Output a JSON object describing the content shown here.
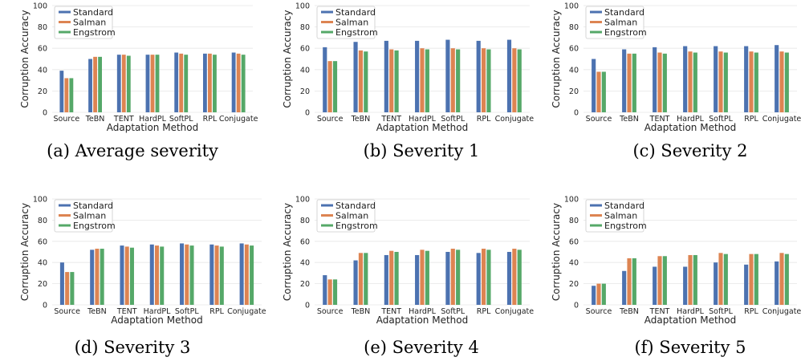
{
  "legend": [
    "Standard",
    "Salman",
    "Engstrom"
  ],
  "colors": [
    "#4c72b0",
    "#dd8452",
    "#55a868"
  ],
  "chart_data": [
    {
      "type": "bar",
      "caption": "(a) Average severity",
      "xlabel": "Adaptation Method",
      "ylabel": "Corruption Accuracy",
      "ylim": [
        0,
        100
      ],
      "yticks": [
        0,
        20,
        40,
        60,
        80,
        100
      ],
      "categories": [
        "Source",
        "TeBN",
        "TENT",
        "HardPL",
        "SoftPL",
        "RPL",
        "Conjugate"
      ],
      "series": [
        {
          "name": "Standard",
          "values": [
            39,
            50,
            54,
            54,
            56,
            55,
            56
          ]
        },
        {
          "name": "Salman",
          "values": [
            32,
            52,
            54,
            54,
            55,
            55,
            55
          ]
        },
        {
          "name": "Engstrom",
          "values": [
            32,
            52,
            53,
            54,
            54,
            54,
            54
          ]
        }
      ]
    },
    {
      "type": "bar",
      "caption": "(b) Severity 1",
      "xlabel": "Adaptation Method",
      "ylabel": "Corruption Accuracy",
      "ylim": [
        0,
        100
      ],
      "yticks": [
        0,
        20,
        40,
        60,
        80,
        100
      ],
      "categories": [
        "Source",
        "TeBN",
        "TENT",
        "HardPL",
        "SoftPL",
        "RPL",
        "Conjugate"
      ],
      "series": [
        {
          "name": "Standard",
          "values": [
            61,
            66,
            67,
            67,
            68,
            67,
            68
          ]
        },
        {
          "name": "Salman",
          "values": [
            48,
            58,
            59,
            60,
            60,
            60,
            60
          ]
        },
        {
          "name": "Engstrom",
          "values": [
            48,
            57,
            58,
            59,
            59,
            59,
            59
          ]
        }
      ]
    },
    {
      "type": "bar",
      "caption": "(c) Severity 2",
      "xlabel": "Adaptation Method",
      "ylabel": "Corruption Accuracy",
      "ylim": [
        0,
        100
      ],
      "yticks": [
        0,
        20,
        40,
        60,
        80,
        100
      ],
      "categories": [
        "Source",
        "TeBN",
        "TENT",
        "HardPL",
        "SoftPL",
        "RPL",
        "Conjugate"
      ],
      "series": [
        {
          "name": "Standard",
          "values": [
            50,
            59,
            61,
            62,
            62,
            62,
            63
          ]
        },
        {
          "name": "Salman",
          "values": [
            38,
            55,
            56,
            57,
            57,
            57,
            57
          ]
        },
        {
          "name": "Engstrom",
          "values": [
            38,
            55,
            55,
            56,
            56,
            56,
            56
          ]
        }
      ]
    },
    {
      "type": "bar",
      "caption": "(d) Severity 3",
      "xlabel": "Adaptation Method",
      "ylabel": "Corruption Accuracy",
      "ylim": [
        0,
        100
      ],
      "yticks": [
        0,
        20,
        40,
        60,
        80,
        100
      ],
      "categories": [
        "Source",
        "TeBN",
        "TENT",
        "HardPL",
        "SoftPL",
        "RPL",
        "Conjugate"
      ],
      "series": [
        {
          "name": "Standard",
          "values": [
            40,
            52,
            56,
            57,
            58,
            57,
            58
          ]
        },
        {
          "name": "Salman",
          "values": [
            31,
            53,
            55,
            56,
            57,
            56,
            57
          ]
        },
        {
          "name": "Engstrom",
          "values": [
            31,
            53,
            54,
            55,
            56,
            55,
            56
          ]
        }
      ]
    },
    {
      "type": "bar",
      "caption": "(e) Severity 4",
      "xlabel": "Adaptation Method",
      "ylabel": "Corruption Accuracy",
      "ylim": [
        0,
        100
      ],
      "yticks": [
        0,
        20,
        40,
        60,
        80,
        100
      ],
      "categories": [
        "Source",
        "TeBN",
        "TENT",
        "HardPL",
        "SoftPL",
        "RPL",
        "Conjugate"
      ],
      "series": [
        {
          "name": "Standard",
          "values": [
            28,
            42,
            47,
            47,
            50,
            49,
            50
          ]
        },
        {
          "name": "Salman",
          "values": [
            24,
            49,
            51,
            52,
            53,
            53,
            53
          ]
        },
        {
          "name": "Engstrom",
          "values": [
            24,
            49,
            50,
            51,
            52,
            52,
            52
          ]
        }
      ]
    },
    {
      "type": "bar",
      "caption": "(f) Severity 5",
      "xlabel": "Adaptation Method",
      "ylabel": "Corruption Accuracy",
      "ylim": [
        0,
        100
      ],
      "yticks": [
        0,
        20,
        40,
        60,
        80,
        100
      ],
      "categories": [
        "Source",
        "TeBN",
        "TENT",
        "HardPL",
        "SoftPL",
        "RPL",
        "Conjugate"
      ],
      "series": [
        {
          "name": "Standard",
          "values": [
            18,
            32,
            36,
            36,
            40,
            38,
            41
          ]
        },
        {
          "name": "Salman",
          "values": [
            20,
            44,
            46,
            47,
            49,
            48,
            49
          ]
        },
        {
          "name": "Engstrom",
          "values": [
            20,
            44,
            46,
            47,
            48,
            48,
            48
          ]
        }
      ]
    }
  ]
}
